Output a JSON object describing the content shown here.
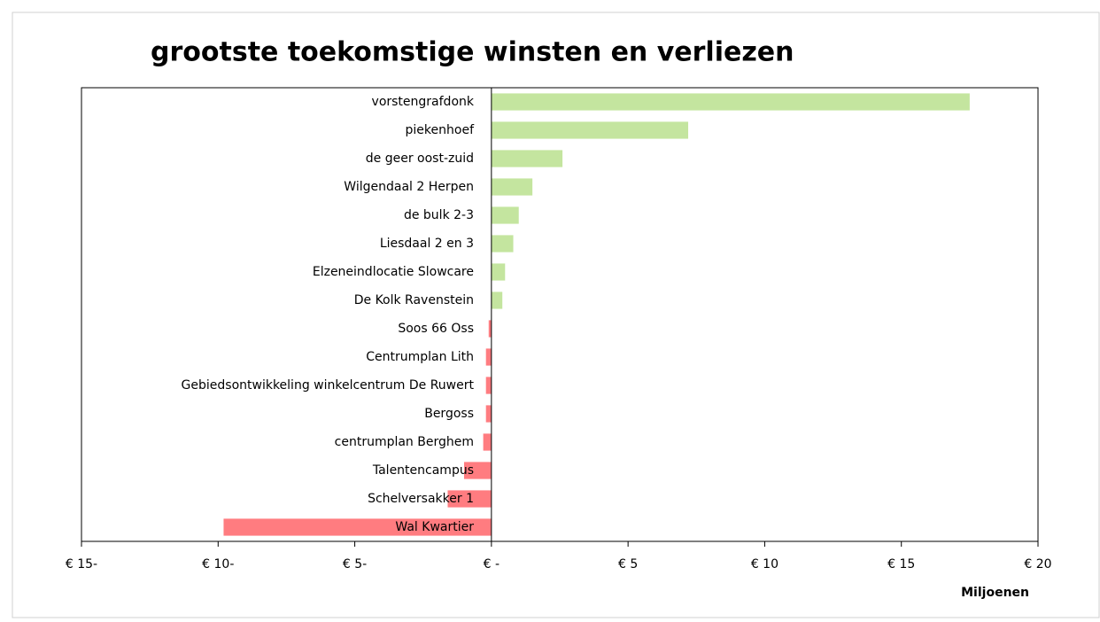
{
  "chart_data": {
    "type": "barh",
    "title": "grootste toekomstige winsten en verliezen",
    "x_label": "Miljoenen",
    "categories": [
      "vorstengrafdonk",
      "piekenhoef",
      "de geer oost-zuid",
      "Wilgendaal 2 Herpen",
      "de bulk 2-3",
      "Liesdaal 2 en 3",
      "Elzeneindlocatie Slowcare",
      "De Kolk Ravenstein",
      "Soos 66 Oss",
      "Centrumplan Lith",
      "Gebiedsontwikkeling winkelcentrum De Ruwert",
      "Bergoss",
      "centrumplan Berghem",
      "Talentencampus",
      "Schelversakker 1",
      "Wal Kwartier"
    ],
    "values": [
      17.5,
      7.2,
      2.6,
      1.5,
      1.0,
      0.8,
      0.5,
      0.4,
      -0.1,
      -0.2,
      -0.2,
      -0.2,
      -0.3,
      -1.0,
      -1.6,
      -9.8
    ],
    "positive_color": "#c4e59f",
    "negative_color": "#ff7c80",
    "xlim": [
      -15,
      20
    ],
    "xticks": [
      {
        "value": -15,
        "label": "€ 15-"
      },
      {
        "value": -10,
        "label": "€ 10-"
      },
      {
        "value": -5,
        "label": "€ 5-"
      },
      {
        "value": 0,
        "label": "€ -"
      },
      {
        "value": 5,
        "label": "€ 5"
      },
      {
        "value": 10,
        "label": "€ 10"
      },
      {
        "value": 15,
        "label": "€ 15"
      },
      {
        "value": 20,
        "label": "€ 20"
      }
    ]
  }
}
